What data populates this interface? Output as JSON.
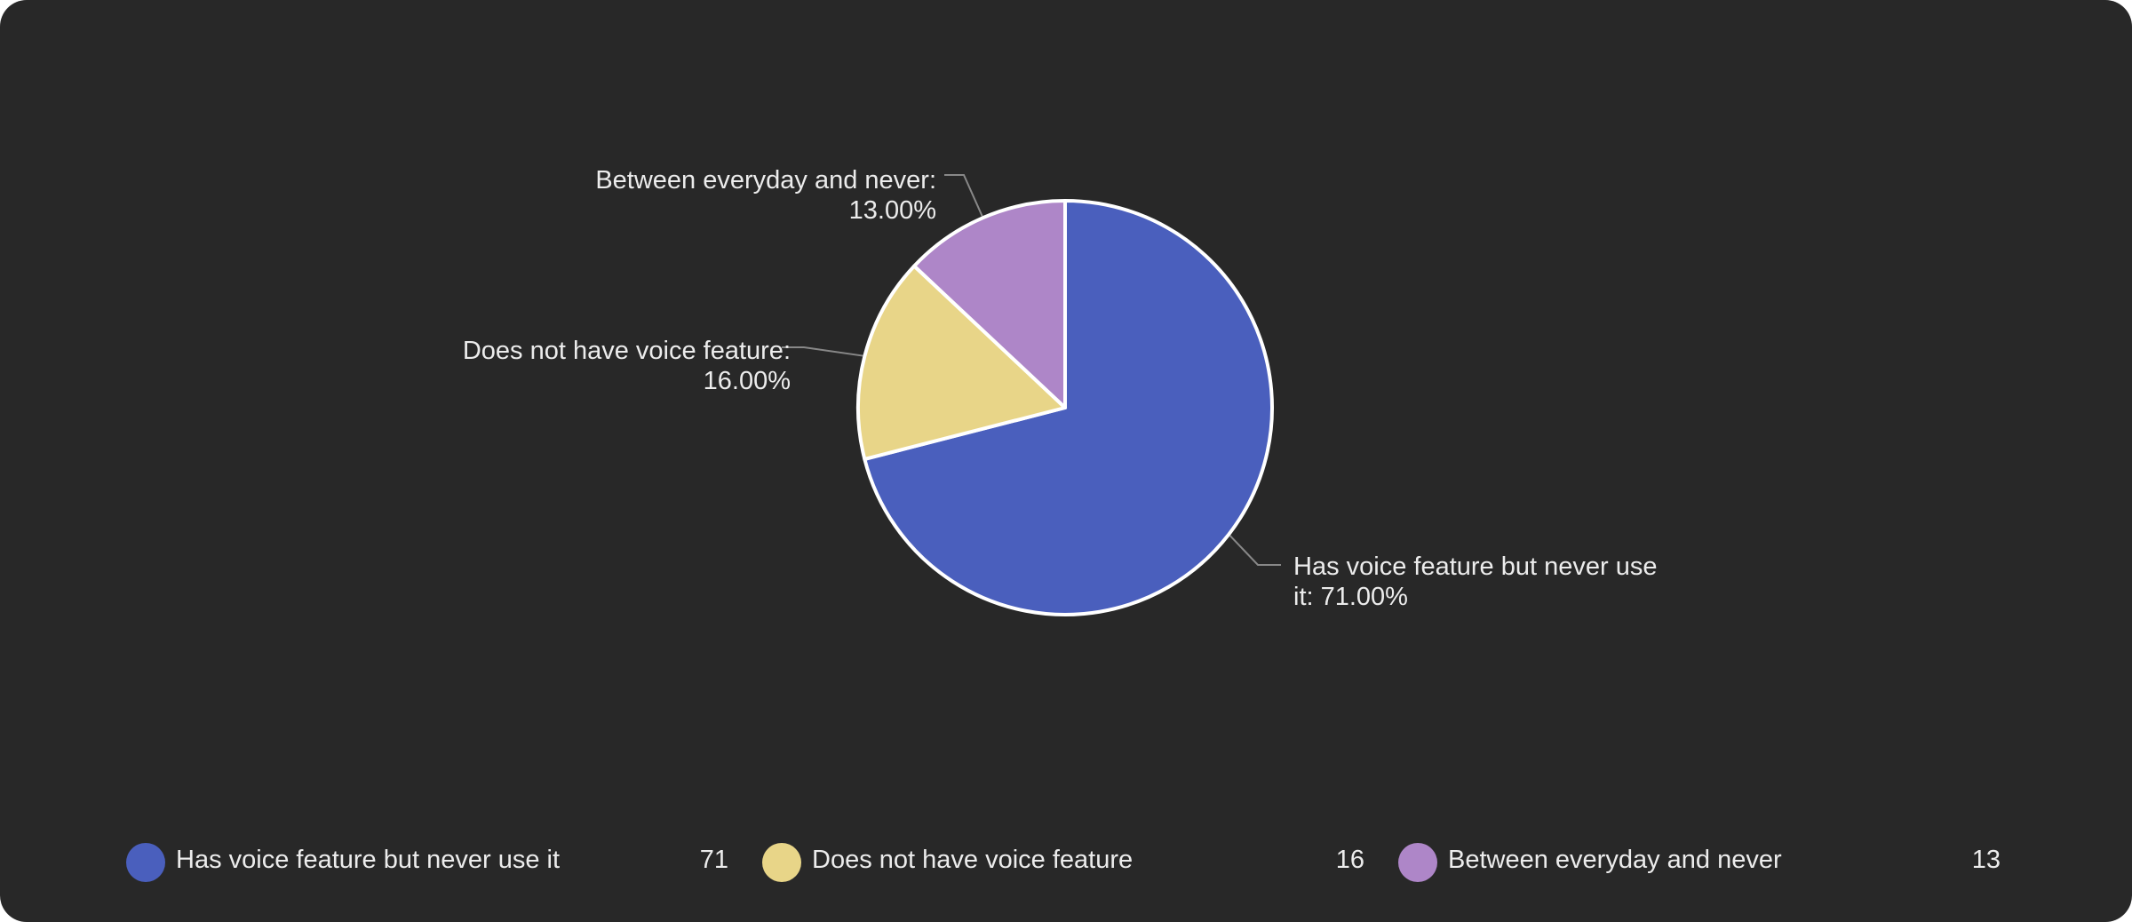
{
  "chart_data": {
    "type": "pie",
    "categories": [
      "Has voice feature but never use it",
      "Does not have voice feature",
      "Between everyday and never"
    ],
    "values": [
      71,
      16,
      13
    ],
    "colors": [
      "#4a5fbd",
      "#e8d588",
      "#ae86c8"
    ],
    "slice_labels": [
      [
        "Has voice feature but never use",
        "it: 71.00%"
      ],
      [
        "Does not have voice feature:",
        "16.00%"
      ],
      [
        "Between everyday and never:",
        "13.00%"
      ]
    ],
    "legend": {
      "placement": "bottom",
      "items": [
        {
          "name": "Has voice feature but never use it",
          "count": "71"
        },
        {
          "name": "Does not have voice feature",
          "count": "16"
        },
        {
          "name": "Between everyday and never",
          "count": "13"
        }
      ]
    },
    "colors_meta": {
      "background": "#282828",
      "slice_border": "#ffffff",
      "label_text": "#ececec",
      "leader_line": "#888888"
    }
  }
}
